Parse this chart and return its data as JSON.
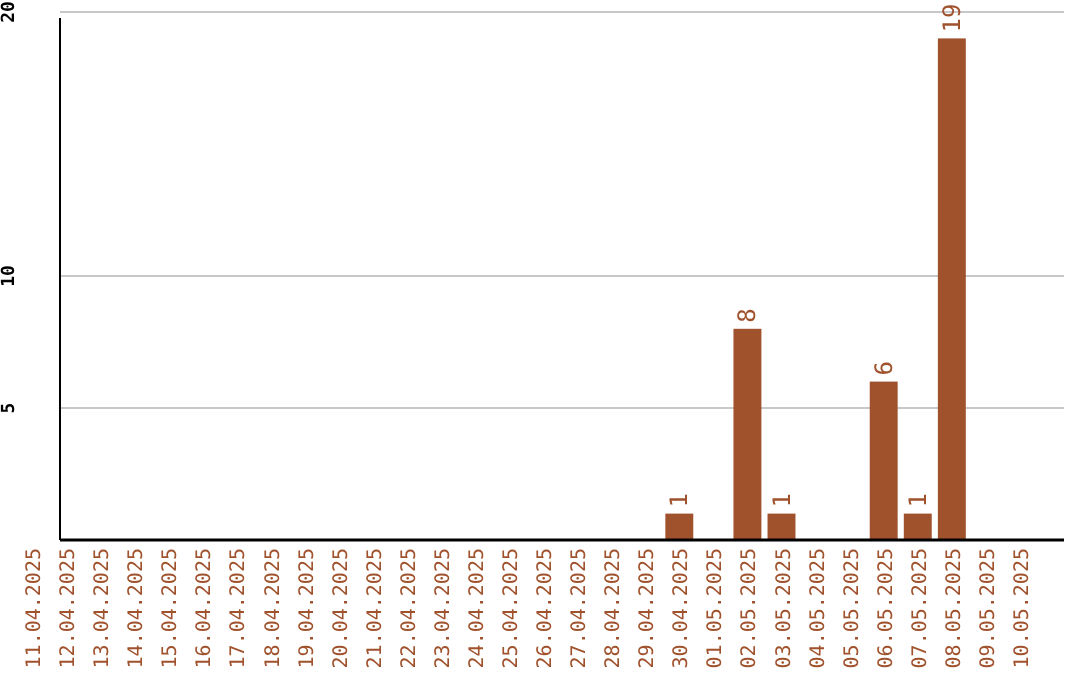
{
  "chart_data": {
    "type": "bar",
    "categories": [
      "11.04.2025",
      "12.04.2025",
      "13.04.2025",
      "14.04.2025",
      "15.04.2025",
      "16.04.2025",
      "17.04.2025",
      "18.04.2025",
      "19.04.2025",
      "20.04.2025",
      "21.04.2025",
      "22.04.2025",
      "23.04.2025",
      "24.04.2025",
      "25.04.2025",
      "26.04.2025",
      "27.04.2025",
      "28.04.2025",
      "29.04.2025",
      "30.04.2025",
      "01.05.2025",
      "02.05.2025",
      "03.05.2025",
      "04.05.2025",
      "05.05.2025",
      "06.05.2025",
      "07.05.2025",
      "08.05.2025",
      "09.05.2025",
      "10.05.2025"
    ],
    "values": [
      0,
      0,
      0,
      0,
      0,
      0,
      0,
      0,
      0,
      0,
      0,
      0,
      0,
      0,
      0,
      0,
      0,
      0,
      0,
      1,
      0,
      8,
      1,
      0,
      0,
      6,
      1,
      19,
      0,
      0
    ],
    "value_labels": [
      null,
      null,
      null,
      null,
      null,
      null,
      null,
      null,
      null,
      null,
      null,
      null,
      null,
      null,
      null,
      null,
      null,
      null,
      null,
      "1",
      null,
      "8",
      "1",
      null,
      null,
      "6",
      "1",
      "19",
      null,
      null
    ],
    "color": "#a0522d",
    "ylim": [
      0,
      20
    ],
    "yticks": [
      5,
      10,
      20
    ],
    "grid": "y"
  }
}
